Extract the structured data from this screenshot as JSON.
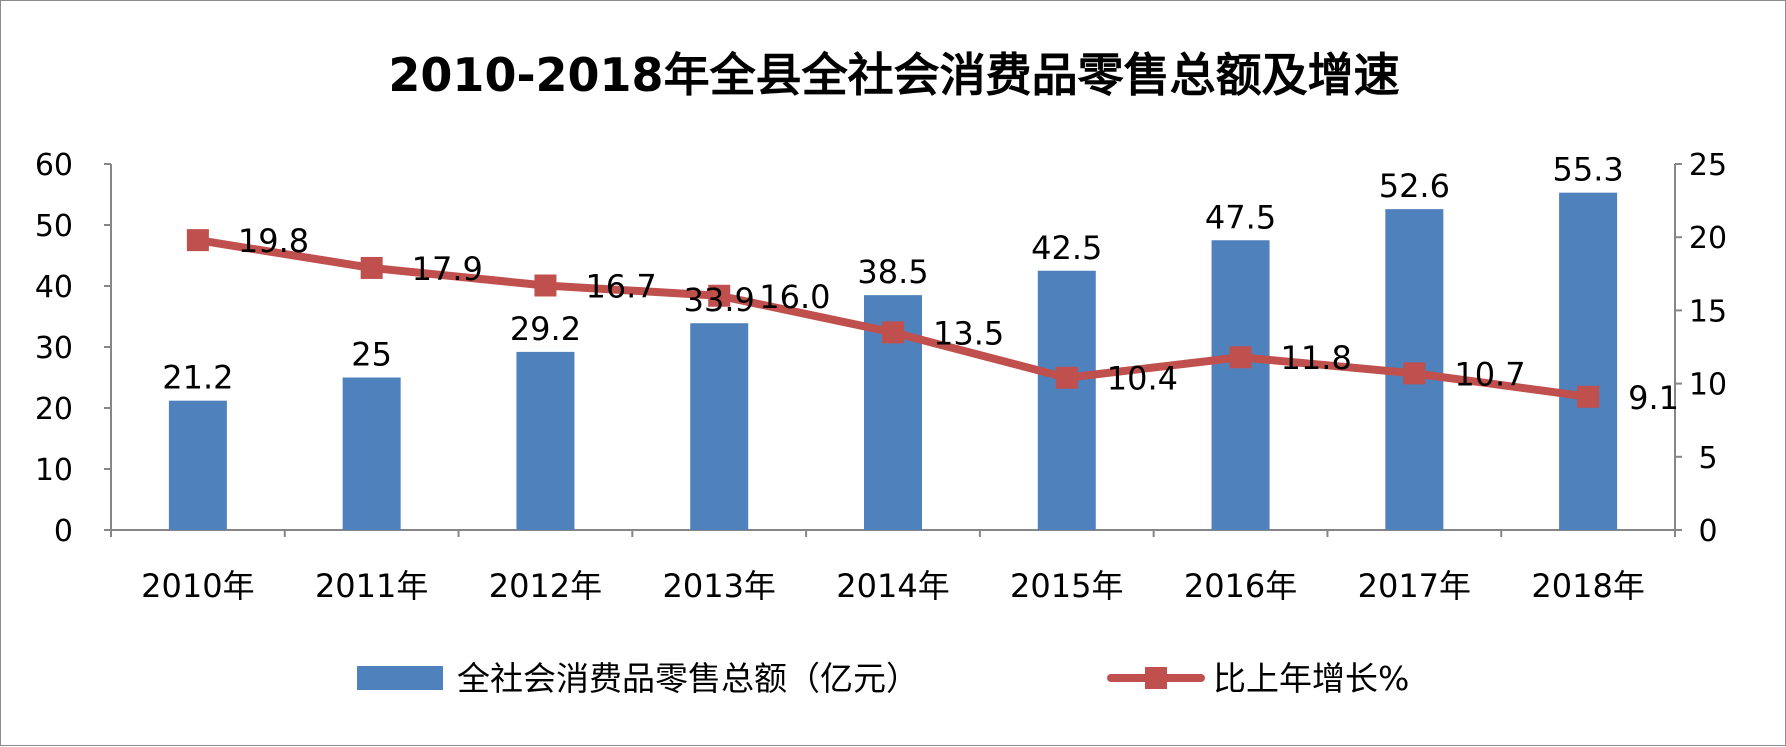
{
  "chart_data": {
    "type": "bar+line",
    "title": "2010-2018年全县全社会消费品零售总额及增速",
    "categories": [
      "2010年",
      "2011年",
      "2012年",
      "2013年",
      "2014年",
      "2015年",
      "2016年",
      "2017年",
      "2018年"
    ],
    "series": [
      {
        "name": "全社会消费品零售总额（亿元）",
        "type": "bar",
        "axis": "left",
        "color": "#4F81BD",
        "values": [
          21.2,
          25,
          29.2,
          33.9,
          38.5,
          42.5,
          47.5,
          52.6,
          55.3
        ],
        "labels": [
          "21.2",
          "25",
          "29.2",
          "33.9",
          "38.5",
          "42.5",
          "47.5",
          "52.6",
          "55.3"
        ]
      },
      {
        "name": "比上年增长%",
        "type": "line",
        "axis": "right",
        "color": "#C0504D",
        "marker": "square",
        "values": [
          19.8,
          17.9,
          16.7,
          16.0,
          13.5,
          10.4,
          11.8,
          10.7,
          9.1
        ],
        "labels": [
          "19.8",
          "17.9",
          "16.7",
          "16.0",
          "13.5",
          "10.4",
          "11.8",
          "10.7",
          "9.1"
        ]
      }
    ],
    "y_left": {
      "min": 0,
      "max": 60,
      "ticks": [
        "0",
        "10",
        "20",
        "30",
        "40",
        "50",
        "60"
      ]
    },
    "y_right": {
      "min": 0,
      "max": 25,
      "ticks": [
        "0",
        "5",
        "10",
        "15",
        "20",
        "25"
      ]
    },
    "grid": false,
    "legend": "bottom"
  }
}
